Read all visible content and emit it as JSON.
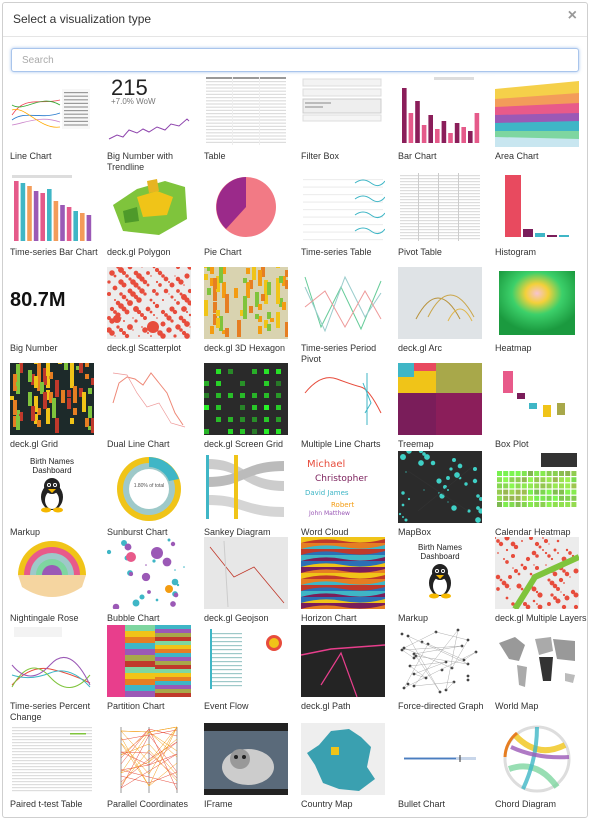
{
  "modal": {
    "title": "Select a visualization type",
    "close_glyph": "×",
    "search_placeholder": "Search"
  },
  "thumb_text": {
    "big_number_trendline_value": "215",
    "big_number_trendline_delta": "+7.0% WoW",
    "big_number_value": "80.7M",
    "markup_title": "Birth Names Dashboard",
    "sunburst_center": "1.80% of total"
  },
  "tiles": [
    {
      "label": "Line Chart",
      "icon": "line-chart-thumb"
    },
    {
      "label": "Big Number with Trendline",
      "icon": "big-number-trendline-thumb"
    },
    {
      "label": "Table",
      "icon": "table-thumb"
    },
    {
      "label": "Filter Box",
      "icon": "filter-box-thumb"
    },
    {
      "label": "Bar Chart",
      "icon": "bar-chart-thumb"
    },
    {
      "label": "Area Chart",
      "icon": "area-chart-thumb"
    },
    {
      "label": "Time-series Bar Chart",
      "icon": "time-series-bar-thumb"
    },
    {
      "label": "deck.gl Polygon",
      "icon": "deckgl-polygon-thumb"
    },
    {
      "label": "Pie Chart",
      "icon": "pie-chart-thumb"
    },
    {
      "label": "Time-series Table",
      "icon": "time-series-table-thumb"
    },
    {
      "label": "Pivot Table",
      "icon": "pivot-table-thumb"
    },
    {
      "label": "Histogram",
      "icon": "histogram-thumb"
    },
    {
      "label": "Big Number",
      "icon": "big-number-thumb"
    },
    {
      "label": "deck.gl Scatterplot",
      "icon": "deckgl-scatterplot-thumb"
    },
    {
      "label": "deck.gl 3D Hexagon",
      "icon": "deckgl-hexagon-thumb"
    },
    {
      "label": "Time-series Period Pivot",
      "icon": "period-pivot-thumb"
    },
    {
      "label": "deck.gl Arc",
      "icon": "deckgl-arc-thumb"
    },
    {
      "label": "Heatmap",
      "icon": "heatmap-thumb"
    },
    {
      "label": "deck.gl Grid",
      "icon": "deckgl-grid-thumb"
    },
    {
      "label": "Dual Line Chart",
      "icon": "dual-line-thumb"
    },
    {
      "label": "deck.gl Screen Grid",
      "icon": "deckgl-screen-grid-thumb"
    },
    {
      "label": "Multiple Line Charts",
      "icon": "multiple-line-thumb"
    },
    {
      "label": "Treemap",
      "icon": "treemap-thumb"
    },
    {
      "label": "Box Plot",
      "icon": "box-plot-thumb"
    },
    {
      "label": "Markup",
      "icon": "markup-thumb"
    },
    {
      "label": "Sunburst Chart",
      "icon": "sunburst-thumb"
    },
    {
      "label": "Sankey Diagram",
      "icon": "sankey-thumb"
    },
    {
      "label": "Word Cloud",
      "icon": "word-cloud-thumb"
    },
    {
      "label": "MapBox",
      "icon": "mapbox-thumb"
    },
    {
      "label": "Calendar Heatmap",
      "icon": "calendar-heatmap-thumb"
    },
    {
      "label": "Nightingale Rose Chart",
      "icon": "nightingale-rose-thumb"
    },
    {
      "label": "Bubble Chart",
      "icon": "bubble-chart-thumb"
    },
    {
      "label": "deck.gl Geojson",
      "icon": "deckgl-geojson-thumb"
    },
    {
      "label": "Horizon Chart",
      "icon": "horizon-chart-thumb"
    },
    {
      "label": "Markup",
      "icon": "markup-thumb"
    },
    {
      "label": "deck.gl Multiple Layers",
      "icon": "deckgl-multiple-layers-thumb"
    },
    {
      "label": "Time-series Percent Change",
      "icon": "percent-change-thumb"
    },
    {
      "label": "Partition Chart",
      "icon": "partition-chart-thumb"
    },
    {
      "label": "Event Flow",
      "icon": "event-flow-thumb"
    },
    {
      "label": "deck.gl Path",
      "icon": "deckgl-path-thumb"
    },
    {
      "label": "Force-directed Graph",
      "icon": "force-directed-thumb"
    },
    {
      "label": "World Map",
      "icon": "world-map-thumb"
    },
    {
      "label": "Paired t-test Table",
      "icon": "paired-ttest-thumb"
    },
    {
      "label": "Parallel Coordinates",
      "icon": "parallel-coordinates-thumb"
    },
    {
      "label": "IFrame",
      "icon": "iframe-thumb"
    },
    {
      "label": "Country Map",
      "icon": "country-map-thumb"
    },
    {
      "label": "Bullet Chart",
      "icon": "bullet-chart-thumb"
    },
    {
      "label": "Chord Diagram",
      "icon": "chord-diagram-thumb"
    }
  ]
}
